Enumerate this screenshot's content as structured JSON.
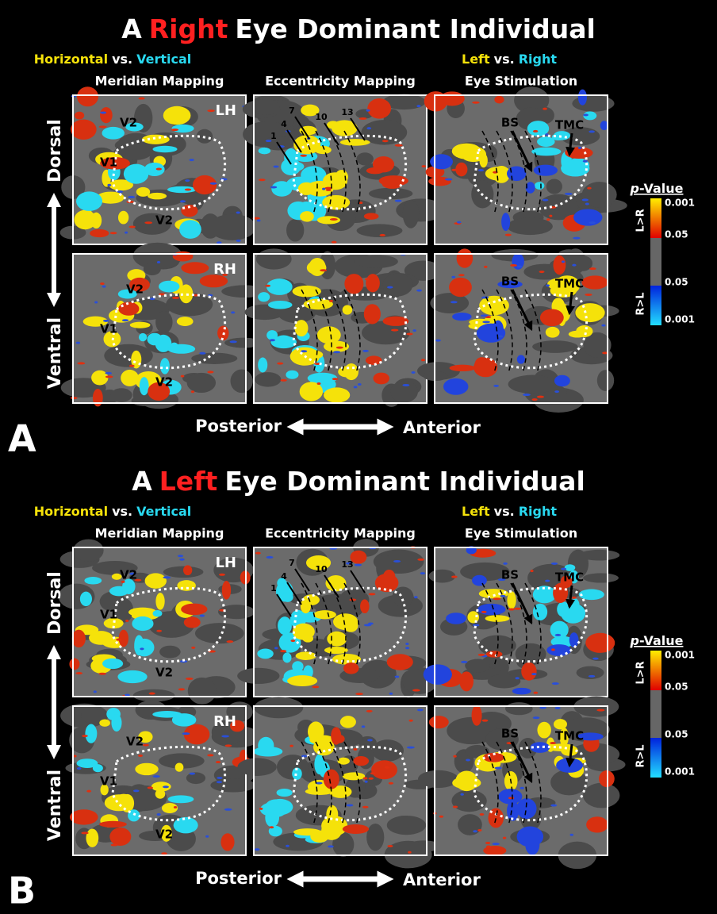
{
  "panels": [
    {
      "letter": "A",
      "title": {
        "prefix": "A",
        "highlight": "Right",
        "suffix": "Eye Dominant Individual"
      },
      "columns": [
        {
          "line1": [
            "Horizontal",
            "vs.",
            "Vertical"
          ],
          "line2": "Meridian Mapping"
        },
        {
          "line2": "Eccentricity Mapping"
        },
        {
          "line1": [
            "Left",
            "vs.",
            "Right"
          ],
          "line2": "Eye Stimulation"
        }
      ],
      "rows": [
        {
          "side": "Dorsal",
          "hemisphere": "LH",
          "meridian_labels": [
            "V2",
            "V1",
            "V2"
          ],
          "eccentricity_labels": [
            "1",
            "4",
            "7",
            "10",
            "13"
          ],
          "eye_labels": [
            "BS",
            "TMC"
          ]
        },
        {
          "side": "Ventral",
          "hemisphere": "RH",
          "meridian_labels": [
            "V2",
            "V1",
            "V2"
          ],
          "eye_labels": [
            "BS",
            "TMC"
          ]
        }
      ],
      "axis": {
        "posterior": "Posterior",
        "anterior": "Anterior"
      },
      "legend": {
        "title_italic": "p",
        "title_rest": "-Value",
        "top_side": "L>R",
        "bottom_side": "R>L",
        "ticks": [
          "0.001",
          "0.05",
          "0.05",
          "0.001"
        ]
      }
    },
    {
      "letter": "B",
      "title": {
        "prefix": "A",
        "highlight": "Left",
        "suffix": "Eye Dominant Individual"
      },
      "columns": [
        {
          "line1": [
            "Horizontal",
            "vs.",
            "Vertical"
          ],
          "line2": "Meridian Mapping"
        },
        {
          "line2": "Eccentricity Mapping"
        },
        {
          "line1": [
            "Left",
            "vs.",
            "Right"
          ],
          "line2": "Eye Stimulation"
        }
      ],
      "rows": [
        {
          "side": "Dorsal",
          "hemisphere": "LH",
          "meridian_labels": [
            "V2",
            "V1",
            "V2"
          ],
          "eccentricity_labels": [
            "1",
            "4",
            "7",
            "10",
            "13"
          ],
          "eye_labels": [
            "BS",
            "TMC"
          ]
        },
        {
          "side": "Ventral",
          "hemisphere": "RH",
          "meridian_labels": [
            "V2",
            "V1",
            "V2"
          ],
          "eye_labels": [
            "BS",
            "TMC"
          ]
        }
      ],
      "axis": {
        "posterior": "Posterior",
        "anterior": "Anterior"
      },
      "legend": {
        "title_italic": "p",
        "title_rest": "-Value",
        "top_side": "L>R",
        "bottom_side": "R>L",
        "ticks": [
          "0.001",
          "0.05",
          "0.05",
          "0.001"
        ]
      }
    }
  ]
}
